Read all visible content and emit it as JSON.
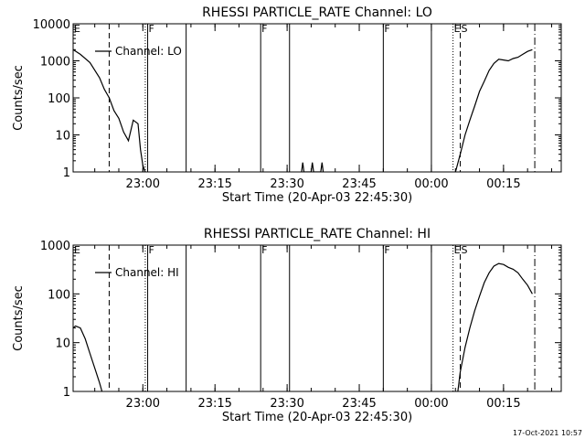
{
  "footer": {
    "timestamp": "17-Oct-2021 10:57"
  },
  "chart_data": [
    {
      "type": "line",
      "title": "RHESSI PARTICLE_RATE Channel: LO",
      "xlabel": "Start Time (20-Apr-03 22:45:30)",
      "ylabel": "Counts/sec",
      "yscale": "log",
      "ylim": [
        1,
        10000
      ],
      "ytick_values": [
        1,
        10,
        100,
        1000,
        10000
      ],
      "ytick_labels": [
        "1",
        "10",
        "100",
        "1000",
        "10000"
      ],
      "xlim": [
        "22:45:30",
        "00:27:00"
      ],
      "xtick_values": [
        "23:00",
        "23:15",
        "23:30",
        "23:45",
        "00:00",
        "00:15"
      ],
      "xtick_labels": [
        "23:00",
        "23:15",
        "23:30",
        "23:45",
        "00:00",
        "00:15"
      ],
      "grid": false,
      "legend_position": "top-left",
      "series": [
        {
          "name": "Channel: LO",
          "x": [
            "22:45:30",
            "22:47",
            "22:49",
            "22:51",
            "22:52",
            "22:53",
            "22:54",
            "22:55",
            "22:56",
            "22:57",
            "22:58",
            "22:59",
            "22:59:30",
            "23:00",
            "23:00:30"
          ],
          "y": [
            2000,
            1500,
            900,
            350,
            170,
            100,
            45,
            28,
            12,
            7,
            25,
            20,
            4,
            1.5,
            1
          ]
        },
        {
          "name": "",
          "x": [
            "23:33:00",
            "23:33:15",
            "23:33:30",
            "23:35:00",
            "23:35:15",
            "23:35:30",
            "23:37:00",
            "23:37:15",
            "23:37:30"
          ],
          "y": [
            1,
            1.8,
            1,
            1,
            1.8,
            1,
            1,
            1.8,
            1
          ]
        },
        {
          "name": "",
          "x": [
            "00:05",
            "00:06",
            "00:07",
            "00:08",
            "00:09",
            "00:10",
            "00:11",
            "00:12",
            "00:13",
            "00:14",
            "00:15",
            "00:16",
            "00:17",
            "00:18",
            "00:19",
            "00:20",
            "00:21"
          ],
          "y": [
            1,
            3,
            10,
            25,
            60,
            150,
            280,
            550,
            850,
            1100,
            1050,
            1000,
            1150,
            1250,
            1500,
            1800,
            2000
          ]
        }
      ],
      "markers": [
        {
          "time": "22:45:30",
          "style": "solid",
          "label": "E"
        },
        {
          "time": "22:53:00",
          "style": "dashed",
          "label": ""
        },
        {
          "time": "23:00:30",
          "style": "dotted",
          "label": ""
        },
        {
          "time": "23:01:00",
          "style": "solid",
          "label": "F"
        },
        {
          "time": "23:09:00",
          "style": "solid",
          "label": ""
        },
        {
          "time": "23:24:30",
          "style": "solid",
          "label": "F"
        },
        {
          "time": "23:30:30",
          "style": "solid",
          "label": ""
        },
        {
          "time": "23:50:00",
          "style": "solid",
          "label": "F"
        },
        {
          "time": "00:00:00",
          "style": "solid",
          "label": ""
        },
        {
          "time": "00:04:30",
          "style": "dotted",
          "label": "E"
        },
        {
          "time": "00:06:00",
          "style": "dashed",
          "label": "S"
        },
        {
          "time": "00:21:30",
          "style": "dash-dot",
          "label": ""
        }
      ]
    },
    {
      "type": "line",
      "title": "RHESSI PARTICLE_RATE Channel: HI",
      "xlabel": "Start Time (20-Apr-03 22:45:30)",
      "ylabel": "Counts/sec",
      "yscale": "log",
      "ylim": [
        1,
        1000
      ],
      "ytick_values": [
        1,
        10,
        100,
        1000
      ],
      "ytick_labels": [
        "1",
        "10",
        "100",
        "1000"
      ],
      "xlim": [
        "22:45:30",
        "00:27:00"
      ],
      "xtick_values": [
        "23:00",
        "23:15",
        "23:30",
        "23:45",
        "00:00",
        "00:15"
      ],
      "xtick_labels": [
        "23:00",
        "23:15",
        "23:30",
        "23:45",
        "00:00",
        "00:15"
      ],
      "grid": false,
      "legend_position": "top-left",
      "series": [
        {
          "name": "Channel: HI",
          "x": [
            "22:45:30",
            "22:46",
            "22:47",
            "22:48",
            "22:49",
            "22:50",
            "22:51",
            "22:51:30"
          ],
          "y": [
            20,
            22,
            20,
            12,
            6,
            3,
            1.5,
            1
          ]
        },
        {
          "name": "",
          "x": [
            "00:05:30",
            "00:06",
            "00:07",
            "00:08",
            "00:09",
            "00:10",
            "00:11",
            "00:12",
            "00:13",
            "00:14",
            "00:15",
            "00:16",
            "00:17",
            "00:18",
            "00:19",
            "00:20",
            "00:21"
          ],
          "y": [
            1,
            2.5,
            8,
            20,
            45,
            90,
            170,
            270,
            370,
            420,
            400,
            350,
            320,
            270,
            200,
            150,
            100
          ]
        }
      ],
      "markers": [
        {
          "time": "22:45:30",
          "style": "solid",
          "label": "E"
        },
        {
          "time": "22:53:00",
          "style": "dashed",
          "label": ""
        },
        {
          "time": "23:00:30",
          "style": "dotted",
          "label": ""
        },
        {
          "time": "23:01:00",
          "style": "solid",
          "label": "F"
        },
        {
          "time": "23:09:00",
          "style": "solid",
          "label": ""
        },
        {
          "time": "23:24:30",
          "style": "solid",
          "label": "F"
        },
        {
          "time": "23:30:30",
          "style": "solid",
          "label": ""
        },
        {
          "time": "23:50:00",
          "style": "solid",
          "label": "F"
        },
        {
          "time": "00:00:00",
          "style": "solid",
          "label": ""
        },
        {
          "time": "00:04:30",
          "style": "dotted",
          "label": "E"
        },
        {
          "time": "00:06:00",
          "style": "dashed",
          "label": "S"
        },
        {
          "time": "00:21:30",
          "style": "dash-dot",
          "label": ""
        }
      ]
    }
  ]
}
